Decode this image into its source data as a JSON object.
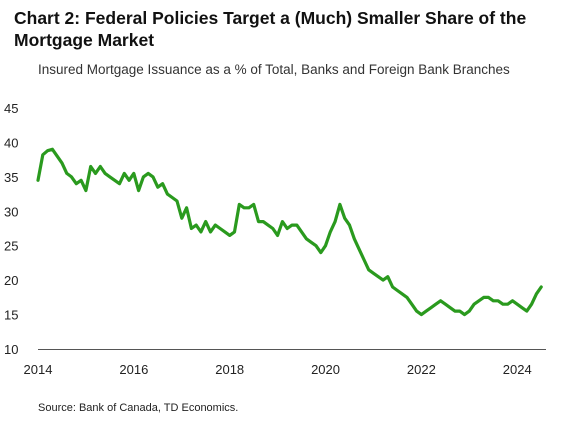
{
  "title": "Chart 2: Federal Policies Target a (Much) Smaller Share of the Mortgage Market",
  "subtitle": "Insured Mortgage Issuance as a % of Total, Banks and Foreign Bank Branches",
  "source": "Source:  Bank of Canada, TD Economics.",
  "colors": {
    "line": "#2a9a1e",
    "axis": "#555555",
    "text": "#222222"
  },
  "chart_data": {
    "type": "line",
    "title": "Chart 2: Federal Policies Target a (Much) Smaller Share of the Mortgage Market",
    "ylabel": "Insured Mortgage Issuance as a % of Total, Banks and Foreign Bank Branches",
    "xlabel": "",
    "xlim": [
      2014,
      2024.6
    ],
    "ylim": [
      10,
      45
    ],
    "x_ticks": [
      2014,
      2016,
      2018,
      2020,
      2022,
      2024
    ],
    "y_ticks": [
      10,
      15,
      20,
      25,
      30,
      35,
      40,
      45
    ],
    "grid": false,
    "legend": "none",
    "series": [
      {
        "x": [
          2014.0,
          2014.1,
          2014.2,
          2014.3,
          2014.4,
          2014.5,
          2014.6,
          2014.7,
          2014.8,
          2014.9,
          2015.0,
          2015.1,
          2015.2,
          2015.3,
          2015.4,
          2015.5,
          2015.6,
          2015.7,
          2015.8,
          2015.9,
          2016.0,
          2016.1,
          2016.2,
          2016.3,
          2016.4,
          2016.5,
          2016.6,
          2016.7,
          2016.8,
          2016.9,
          2017.0,
          2017.1,
          2017.2,
          2017.3,
          2017.4,
          2017.5,
          2017.6,
          2017.7,
          2017.8,
          2017.9,
          2018.0,
          2018.1,
          2018.2,
          2018.3,
          2018.4,
          2018.5,
          2018.6,
          2018.7,
          2018.8,
          2018.9,
          2019.0,
          2019.1,
          2019.2,
          2019.3,
          2019.4,
          2019.5,
          2019.6,
          2019.7,
          2019.8,
          2019.9,
          2020.0,
          2020.1,
          2020.2,
          2020.3,
          2020.4,
          2020.5,
          2020.6,
          2020.7,
          2020.8,
          2020.9,
          2021.0,
          2021.1,
          2021.2,
          2021.3,
          2021.4,
          2021.5,
          2021.6,
          2021.7,
          2021.8,
          2021.9,
          2022.0,
          2022.1,
          2022.2,
          2022.3,
          2022.4,
          2022.5,
          2022.6,
          2022.7,
          2022.8,
          2022.9,
          2023.0,
          2023.1,
          2023.2,
          2023.3,
          2023.4,
          2023.5,
          2023.6,
          2023.7,
          2023.8,
          2023.9,
          2024.0,
          2024.1,
          2024.2,
          2024.3,
          2024.4,
          2024.5
        ],
        "values": [
          34.5,
          38.2,
          38.8,
          39.0,
          38.0,
          37.0,
          35.5,
          35.0,
          34.0,
          34.5,
          33.0,
          36.5,
          35.5,
          36.5,
          35.5,
          35.0,
          34.5,
          34.0,
          35.5,
          34.5,
          35.5,
          33.0,
          35.0,
          35.5,
          35.0,
          33.5,
          34.0,
          32.5,
          32.0,
          31.5,
          29.0,
          30.5,
          27.5,
          28.0,
          27.0,
          28.5,
          27.0,
          28.0,
          27.5,
          27.0,
          26.5,
          27.0,
          31.0,
          30.5,
          30.5,
          31.0,
          28.5,
          28.5,
          28.0,
          27.5,
          26.5,
          28.5,
          27.5,
          28.0,
          28.0,
          27.0,
          26.0,
          25.5,
          25.0,
          24.0,
          25.0,
          27.0,
          28.5,
          31.0,
          29.0,
          28.0,
          26.0,
          24.5,
          23.0,
          21.5,
          21.0,
          20.5,
          20.0,
          20.5,
          19.0,
          18.5,
          18.0,
          17.5,
          16.5,
          15.5,
          15.0,
          15.5,
          16.0,
          16.5,
          17.0,
          16.5,
          16.0,
          15.5,
          15.5,
          15.0,
          15.5,
          16.5,
          17.0,
          17.5,
          17.5,
          17.0,
          17.0,
          16.5,
          16.5,
          17.0,
          16.5,
          16.0,
          15.5,
          16.5,
          18.0,
          19.0
        ]
      }
    ]
  }
}
